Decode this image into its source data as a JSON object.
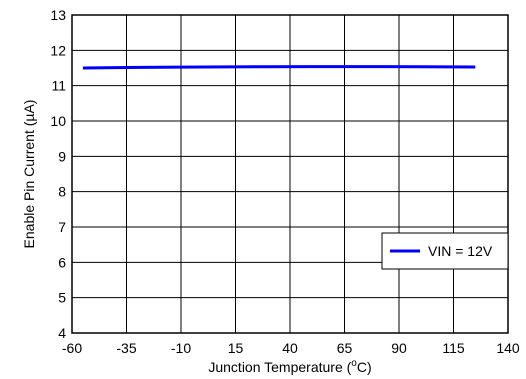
{
  "chart_data": {
    "type": "line",
    "xlabel": "Junction Temperature (",
    "xlabel_sup": "o",
    "xlabel_end": "C)",
    "ylabel": "Enable Pin Current (",
    "ylabel_mu": "µ",
    "ylabel_end": "A)",
    "xlim": [
      -60,
      140
    ],
    "ylim": [
      4,
      13
    ],
    "x_ticks": [
      -60,
      -35,
      -10,
      15,
      40,
      65,
      90,
      115,
      140
    ],
    "y_ticks": [
      4,
      5,
      6,
      7,
      8,
      9,
      10,
      11,
      12,
      13
    ],
    "grid": true,
    "legend_position": "lower-right",
    "series": [
      {
        "name": "VIN = 12V",
        "color": "#0000ff",
        "x": [
          -55,
          -40,
          -20,
          0,
          25,
          50,
          75,
          100,
          125
        ],
        "y": [
          11.5,
          11.51,
          11.52,
          11.53,
          11.535,
          11.54,
          11.54,
          11.535,
          11.53
        ]
      }
    ]
  }
}
